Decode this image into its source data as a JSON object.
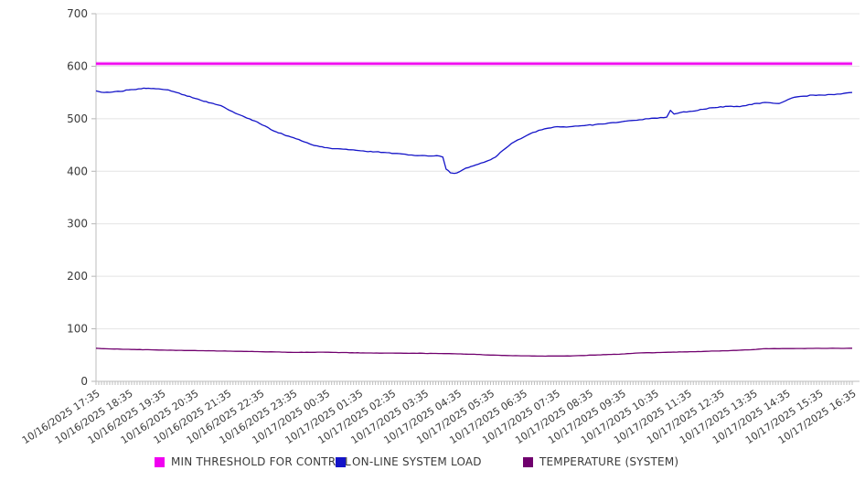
{
  "chart_data": {
    "type": "line",
    "title": "",
    "xlabel": "",
    "ylabel": "",
    "ylim": [
      0,
      700
    ],
    "y_ticks": [
      0,
      100,
      200,
      300,
      400,
      500,
      600,
      700
    ],
    "grid": "horizontal",
    "legend_position": "bottom",
    "x_hours_range": [
      0,
      23
    ],
    "minor_tick_minutes": 5,
    "x_tick_labels": [
      "10/16/2025 17:35",
      "10/16/2025 18:35",
      "10/16/2025 19:35",
      "10/16/2025 20:35",
      "10/16/2025 21:35",
      "10/16/2025 22:35",
      "10/16/2025 23:35",
      "10/17/2025 00:35",
      "10/17/2025 01:35",
      "10/17/2025 02:35",
      "10/17/2025 03:35",
      "10/17/2025 04:35",
      "10/17/2025 05:35",
      "10/17/2025 06:35",
      "10/17/2025 07:35",
      "10/17/2025 08:35",
      "10/17/2025 09:35",
      "10/17/2025 10:35",
      "10/17/2025 11:35",
      "10/17/2025 12:35",
      "10/17/2025 13:35",
      "10/17/2025 14:35",
      "10/17/2025 15:35",
      "10/17/2025 16:35"
    ],
    "series": [
      {
        "name": "MIN THRESHOLD FOR CONTROL",
        "color": "#f000f0",
        "width": 2.2,
        "jitter": 0,
        "points": [
          [
            0,
            605
          ],
          [
            23,
            605
          ]
        ]
      },
      {
        "name": "ON-LINE SYSTEM LOAD",
        "color": "#1414c8",
        "width": 1.3,
        "jitter": 1.4,
        "points": [
          [
            0,
            553
          ],
          [
            0.25,
            550
          ],
          [
            0.5,
            551
          ],
          [
            0.75,
            552
          ],
          [
            1.0,
            555
          ],
          [
            1.3,
            557
          ],
          [
            1.6,
            558
          ],
          [
            1.9,
            557
          ],
          [
            2.2,
            555
          ],
          [
            2.45,
            550
          ],
          [
            2.7,
            545
          ],
          [
            3.0,
            539
          ],
          [
            3.2,
            535
          ],
          [
            3.5,
            530
          ],
          [
            3.8,
            525
          ],
          [
            4.0,
            518
          ],
          [
            4.3,
            509
          ],
          [
            4.6,
            501
          ],
          [
            4.9,
            494
          ],
          [
            5.15,
            486
          ],
          [
            5.4,
            477
          ],
          [
            5.7,
            470
          ],
          [
            6.0,
            464
          ],
          [
            6.25,
            458
          ],
          [
            6.5,
            452
          ],
          [
            6.8,
            447
          ],
          [
            7.1,
            444
          ],
          [
            7.35,
            443
          ],
          [
            7.6,
            442
          ],
          [
            7.9,
            440
          ],
          [
            8.2,
            438
          ],
          [
            8.5,
            437
          ],
          [
            8.75,
            436
          ],
          [
            9.0,
            434
          ],
          [
            9.3,
            433
          ],
          [
            9.5,
            431
          ],
          [
            9.7,
            430
          ],
          [
            10.0,
            430
          ],
          [
            10.2,
            429
          ],
          [
            10.45,
            429
          ],
          [
            10.55,
            427
          ],
          [
            10.65,
            404
          ],
          [
            10.78,
            397
          ],
          [
            10.9,
            396
          ],
          [
            11.05,
            399
          ],
          [
            11.25,
            406
          ],
          [
            11.4,
            409
          ],
          [
            11.55,
            412
          ],
          [
            11.8,
            417
          ],
          [
            12.0,
            422
          ],
          [
            12.15,
            427
          ],
          [
            12.36,
            439
          ],
          [
            12.64,
            453
          ],
          [
            12.92,
            462
          ],
          [
            13.19,
            471
          ],
          [
            13.47,
            478
          ],
          [
            13.75,
            482
          ],
          [
            14.03,
            485
          ],
          [
            14.31,
            484
          ],
          [
            14.58,
            486
          ],
          [
            14.86,
            487
          ],
          [
            15.42,
            490
          ],
          [
            15.97,
            494
          ],
          [
            16.53,
            498
          ],
          [
            16.81,
            500
          ],
          [
            17.08,
            501
          ],
          [
            17.36,
            503
          ],
          [
            17.47,
            516
          ],
          [
            17.58,
            509
          ],
          [
            17.78,
            512
          ],
          [
            18.06,
            514
          ],
          [
            18.47,
            518
          ],
          [
            18.75,
            521
          ],
          [
            19.31,
            524
          ],
          [
            19.58,
            523
          ],
          [
            19.86,
            527
          ],
          [
            20.42,
            531
          ],
          [
            20.78,
            529
          ],
          [
            20.97,
            534
          ],
          [
            21.25,
            541
          ],
          [
            21.53,
            543
          ],
          [
            21.81,
            545
          ],
          [
            22.08,
            545
          ],
          [
            22.36,
            546
          ],
          [
            22.64,
            547
          ],
          [
            23,
            550
          ]
        ]
      },
      {
        "name": "TEMPERATURE (SYSTEM)",
        "color": "#70006e",
        "width": 1.3,
        "jitter": 0.45,
        "points": [
          [
            0,
            63
          ],
          [
            0.3,
            62
          ],
          [
            1.25,
            60.5
          ],
          [
            2.0,
            59.5
          ],
          [
            2.6,
            59
          ],
          [
            4.0,
            57.5
          ],
          [
            4.5,
            57
          ],
          [
            5.4,
            56
          ],
          [
            6.0,
            55
          ],
          [
            6.9,
            55.5
          ],
          [
            7.3,
            55
          ],
          [
            8.2,
            54
          ],
          [
            9.6,
            53.5
          ],
          [
            10.5,
            53
          ],
          [
            11.5,
            51.5
          ],
          [
            12.0,
            50
          ],
          [
            12.6,
            49
          ],
          [
            13.5,
            48
          ],
          [
            14.5,
            48.5
          ],
          [
            15.1,
            50
          ],
          [
            16.0,
            52
          ],
          [
            16.5,
            54
          ],
          [
            17.9,
            56
          ],
          [
            19.3,
            58.5
          ],
          [
            20.0,
            60.5
          ],
          [
            20.3,
            62
          ],
          [
            21.3,
            62.5
          ],
          [
            23,
            63
          ]
        ]
      }
    ]
  }
}
